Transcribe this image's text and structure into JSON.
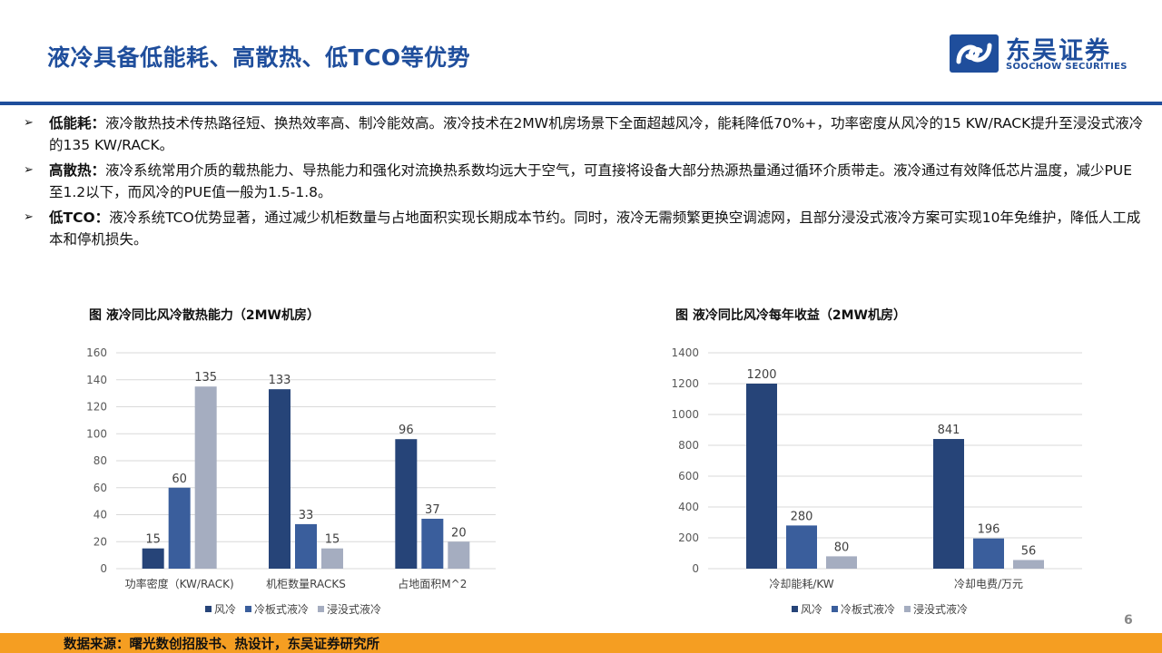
{
  "header": {
    "title": "液冷具备低能耗、高散热、低TCO等优势",
    "logo_cn": "东吴证券",
    "logo_en": "SOOCHOW SECURITIES"
  },
  "bullets": [
    {
      "key": "低能耗：",
      "text": "液冷散热技术传热路径短、换热效率高、制冷能效高。液冷技术在2MW机房场景下全面超越风冷，能耗降低70%+，功率密度从风冷的15 KW/RACK提升至浸没式液冷的135 KW/RACK。"
    },
    {
      "key": "高散热：",
      "text": "液冷系统常用介质的载热能力、导热能力和强化对流换热系数均远大于空气，可直接将设备大部分热源热量通过循环介质带走。液冷通过有效降低芯片温度，减少PUE至1.2以下，而风冷的PUE值一般为1.5-1.8。"
    },
    {
      "key": "低TCO：",
      "text": "液冷系统TCO优势显著，通过减少机柜数量与占地面积实现长期成本节约。同时，液冷无需频繁更换空调滤网，且部分浸没式液冷方案可实现10年免维护，降低人工成本和停机损失。"
    }
  ],
  "colors": {
    "series": [
      "#264478",
      "#3a5e9c",
      "#a5adc0"
    ],
    "accent": "#1f4e9c",
    "footer": "#f59e22"
  },
  "chart_data": [
    {
      "type": "bar",
      "title": "图 液冷同比风冷散热能力（2MW机房）",
      "categories": [
        "功率密度（KW/RACK)",
        "机柜数量RACKS",
        "占地面积M^2"
      ],
      "series": [
        {
          "name": "风冷",
          "values": [
            15,
            133,
            96
          ]
        },
        {
          "name": "冷板式液冷",
          "values": [
            60,
            33,
            37
          ]
        },
        {
          "name": "浸没式液冷",
          "values": [
            135,
            15,
            20
          ]
        }
      ],
      "ylim": [
        0,
        160
      ],
      "yticks": [
        0,
        20,
        40,
        60,
        80,
        100,
        120,
        140,
        160
      ],
      "grid": true,
      "legend": "bottom"
    },
    {
      "type": "bar",
      "title": "图 液冷同比风冷每年收益（2MW机房）",
      "categories": [
        "冷却能耗/KW",
        "冷却电费/万元"
      ],
      "series": [
        {
          "name": "风冷",
          "values": [
            1200,
            841
          ]
        },
        {
          "name": "冷板式液冷",
          "values": [
            280,
            196
          ]
        },
        {
          "name": "浸没式液冷",
          "values": [
            80,
            56
          ]
        }
      ],
      "ylim": [
        0,
        1400
      ],
      "yticks": [
        0,
        200,
        400,
        600,
        800,
        1000,
        1200,
        1400
      ],
      "grid": true,
      "legend": "bottom"
    }
  ],
  "page_number": "6",
  "source": "数据来源：曙光数创招股书、热设计，东吴证券研究所"
}
